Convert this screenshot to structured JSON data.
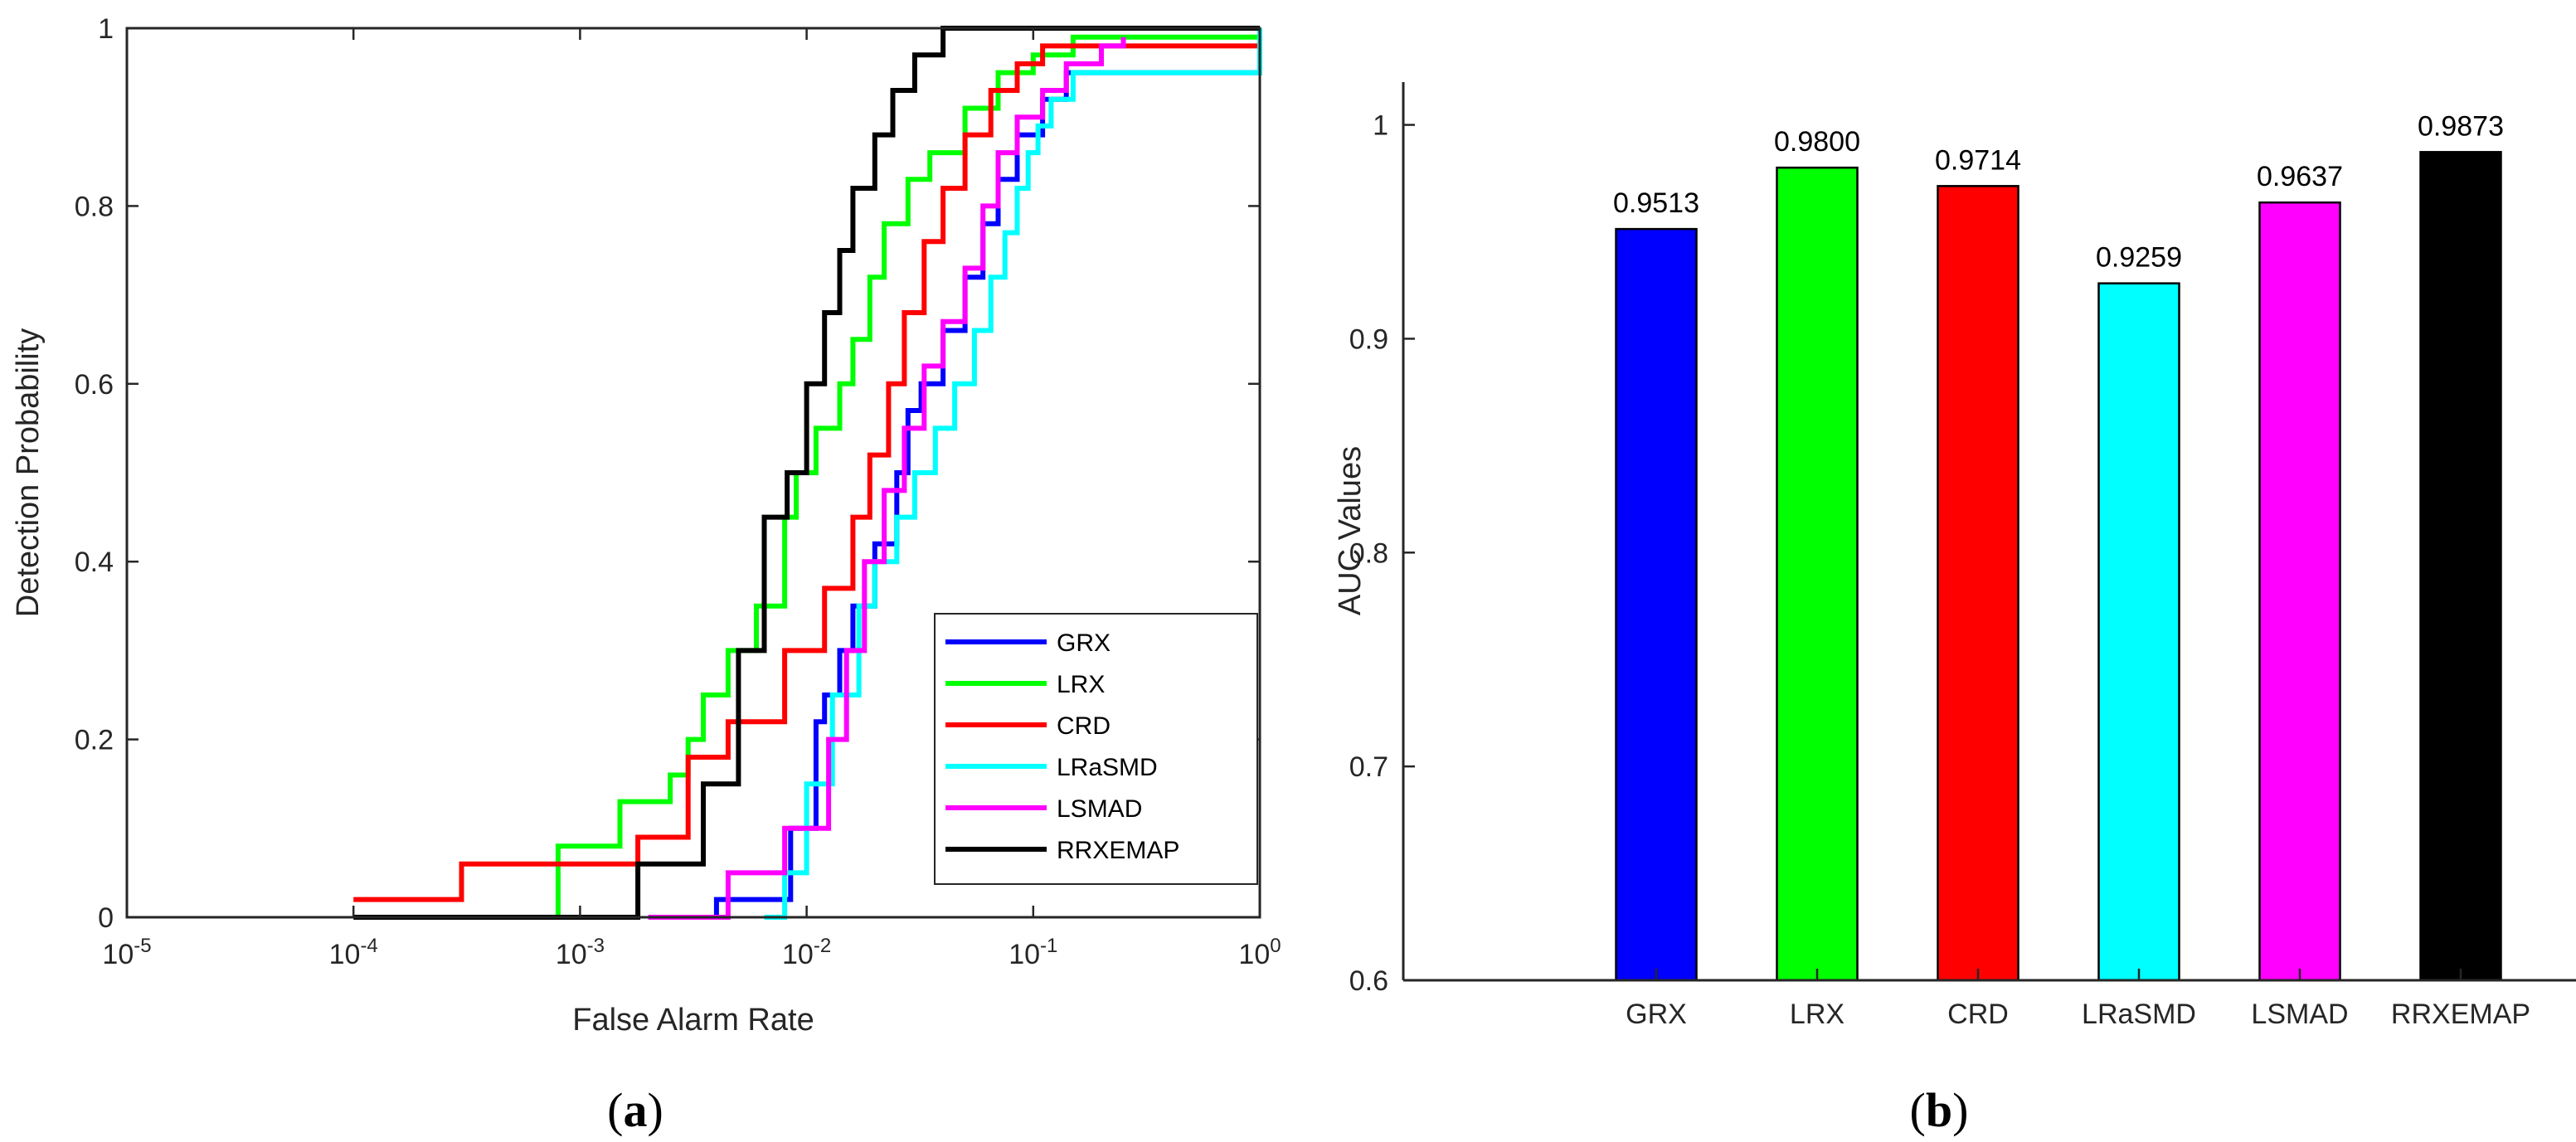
{
  "panels": {
    "a_caption": "(a)",
    "a_caption_parts": [
      "(",
      "a",
      ")"
    ],
    "b_caption_parts": [
      "(",
      "b",
      ")"
    ],
    "b_caption": "(b)"
  },
  "chart_data": [
    {
      "type": "line",
      "id": "roc",
      "xlabel": "False Alarm Rate",
      "ylabel": "Detection Probability",
      "xscale": "log",
      "xlim": [
        1e-05,
        1
      ],
      "ylim": [
        0,
        1
      ],
      "xticks": [
        {
          "value": 1e-05,
          "base": "10",
          "exp": "-5"
        },
        {
          "value": 0.0001,
          "base": "10",
          "exp": "-4"
        },
        {
          "value": 0.001,
          "base": "10",
          "exp": "-3"
        },
        {
          "value": 0.01,
          "base": "10",
          "exp": "-2"
        },
        {
          "value": 0.1,
          "base": "10",
          "exp": "-1"
        },
        {
          "value": 1,
          "base": "10",
          "exp": "0"
        }
      ],
      "yticks": [
        "0",
        "0.2",
        "0.4",
        "0.6",
        "0.8",
        "1"
      ],
      "legend_position": "bottom-right",
      "grid": false,
      "series": [
        {
          "name": "GRX",
          "color": "#0000ff",
          "x": [
            0.0025,
            0.004,
            0.0085,
            0.011,
            0.012,
            0.014,
            0.016,
            0.02,
            0.025,
            0.028,
            0.032,
            0.04,
            0.05,
            0.06,
            0.07,
            0.085,
            0.11,
            0.14,
            1
          ],
          "y": [
            0,
            0.02,
            0.1,
            0.22,
            0.25,
            0.3,
            0.35,
            0.42,
            0.5,
            0.57,
            0.6,
            0.66,
            0.72,
            0.78,
            0.83,
            0.88,
            0.92,
            0.95,
            1
          ]
        },
        {
          "name": "LRX",
          "color": "#00ff00",
          "x": [
            0.0004,
            0.0008,
            0.0015,
            0.0025,
            0.003,
            0.0035,
            0.0045,
            0.006,
            0.008,
            0.009,
            0.011,
            0.014,
            0.016,
            0.019,
            0.022,
            0.028,
            0.035,
            0.05,
            0.07,
            0.1,
            0.15,
            1
          ],
          "y": [
            0,
            0.08,
            0.13,
            0.16,
            0.2,
            0.25,
            0.3,
            0.35,
            0.45,
            0.5,
            0.55,
            0.6,
            0.65,
            0.72,
            0.78,
            0.83,
            0.86,
            0.91,
            0.95,
            0.97,
            0.99,
            1
          ]
        },
        {
          "name": "CRD",
          "color": "#ff0000",
          "x": [
            0.0001,
            0.0003,
            0.0018,
            0.003,
            0.0045,
            0.008,
            0.012,
            0.016,
            0.019,
            0.023,
            0.027,
            0.033,
            0.04,
            0.05,
            0.065,
            0.085,
            0.11,
            1
          ],
          "y": [
            0.02,
            0.06,
            0.09,
            0.18,
            0.22,
            0.3,
            0.37,
            0.45,
            0.52,
            0.6,
            0.68,
            0.76,
            0.82,
            0.88,
            0.93,
            0.96,
            0.98,
            1
          ]
        },
        {
          "name": "LRaSMD",
          "color": "#00ffff",
          "x": [
            0.0065,
            0.008,
            0.01,
            0.013,
            0.017,
            0.02,
            0.025,
            0.03,
            0.037,
            0.045,
            0.055,
            0.065,
            0.075,
            0.085,
            0.095,
            0.105,
            0.12,
            0.15,
            1
          ],
          "y": [
            0,
            0.05,
            0.15,
            0.25,
            0.35,
            0.4,
            0.45,
            0.5,
            0.55,
            0.6,
            0.66,
            0.72,
            0.77,
            0.82,
            0.86,
            0.89,
            0.92,
            0.95,
            1
          ]
        },
        {
          "name": "LSMAD",
          "color": "#ff00ff",
          "x": [
            0.002,
            0.0045,
            0.008,
            0.0125,
            0.015,
            0.018,
            0.022,
            0.027,
            0.033,
            0.04,
            0.05,
            0.06,
            0.07,
            0.085,
            0.11,
            0.14,
            0.2,
            0.25
          ],
          "y": [
            0,
            0.05,
            0.1,
            0.2,
            0.3,
            0.4,
            0.48,
            0.55,
            0.62,
            0.67,
            0.73,
            0.8,
            0.86,
            0.9,
            0.93,
            0.96,
            0.98,
            0.99
          ]
        },
        {
          "name": "RRXEMAP",
          "color": "#000000",
          "x": [
            0.0001,
            0.0018,
            0.0035,
            0.005,
            0.0065,
            0.0082,
            0.01,
            0.012,
            0.014,
            0.016,
            0.02,
            0.024,
            0.03,
            0.04,
            0.055,
            1
          ],
          "y": [
            0,
            0.06,
            0.15,
            0.3,
            0.45,
            0.5,
            0.6,
            0.68,
            0.75,
            0.82,
            0.88,
            0.93,
            0.97,
            1,
            1,
            1
          ]
        }
      ]
    },
    {
      "type": "bar",
      "id": "auc",
      "ylabel": "AUC Values",
      "xlabel": "",
      "ylim": [
        0.6,
        1.02
      ],
      "yticks": [
        "0.6",
        "0.7",
        "0.8",
        "0.9",
        "1"
      ],
      "grid": false,
      "categories": [
        "GRX",
        "LRX",
        "CRD",
        "LRaSMD",
        "LSMAD",
        "RRXEMAP"
      ],
      "values": [
        0.9513,
        0.98,
        0.9714,
        0.9259,
        0.9637,
        0.9873
      ],
      "value_labels": [
        "0.9513",
        "0.9800",
        "0.9714",
        "0.9259",
        "0.9637",
        "0.9873"
      ],
      "colors": [
        "#0000ff",
        "#00ff00",
        "#ff0000",
        "#00ffff",
        "#ff00ff",
        "#000000"
      ]
    }
  ]
}
